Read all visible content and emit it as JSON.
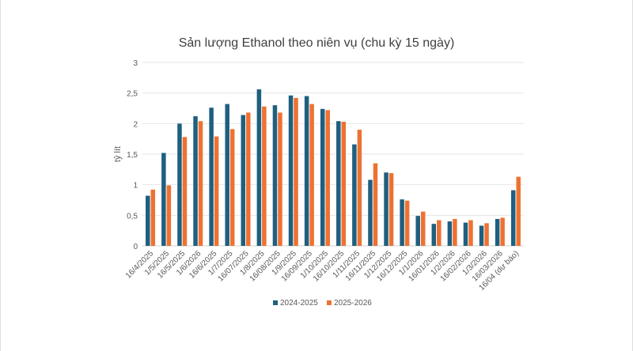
{
  "chart_data": {
    "type": "bar",
    "title": "Sản lượng Ethanol theo niên vụ (chu kỳ 15 ngày)",
    "ylabel": "tỷ lít",
    "xlabel": "",
    "ylim": [
      0,
      3
    ],
    "yticks": [
      "0",
      "0,5",
      "1",
      "1,5",
      "2",
      "2,5",
      "3"
    ],
    "grid": true,
    "legend": "bottom",
    "categories": [
      "16/4/2025",
      "1/5/2025",
      "16/5/2025",
      "1/6/2026",
      "16/6/2025",
      "1/7/2025",
      "16/07/2025",
      "1/8/2025",
      "16/08/2025",
      "1/9/2025",
      "16/09/2025",
      "1/10/2025",
      "16/10/2025",
      "1/11/2025",
      "16/11/2025",
      "1/12/2025",
      "16/12/2025",
      "1/1/2026",
      "16/01/2026",
      "1/2/2026",
      "16/02/2026",
      "1/3/2026",
      "16/03/2026",
      "16/04 (dự báo)"
    ],
    "series": [
      {
        "name": "2024-2025",
        "color": "#1f5f7f",
        "values": [
          0.82,
          1.52,
          2.0,
          2.12,
          2.26,
          2.32,
          2.14,
          2.56,
          2.3,
          2.46,
          2.45,
          2.24,
          2.04,
          1.66,
          1.08,
          1.2,
          0.76,
          0.49,
          0.36,
          0.4,
          0.38,
          0.33,
          0.44,
          0.91
        ]
      },
      {
        "name": "2025-2026",
        "color": "#ed7232",
        "values": [
          0.92,
          0.99,
          1.78,
          2.04,
          1.79,
          1.91,
          2.18,
          2.28,
          2.18,
          2.42,
          2.32,
          2.22,
          2.03,
          1.9,
          1.35,
          1.19,
          0.74,
          0.56,
          0.42,
          0.44,
          0.42,
          0.37,
          0.46,
          1.13
        ]
      }
    ]
  }
}
